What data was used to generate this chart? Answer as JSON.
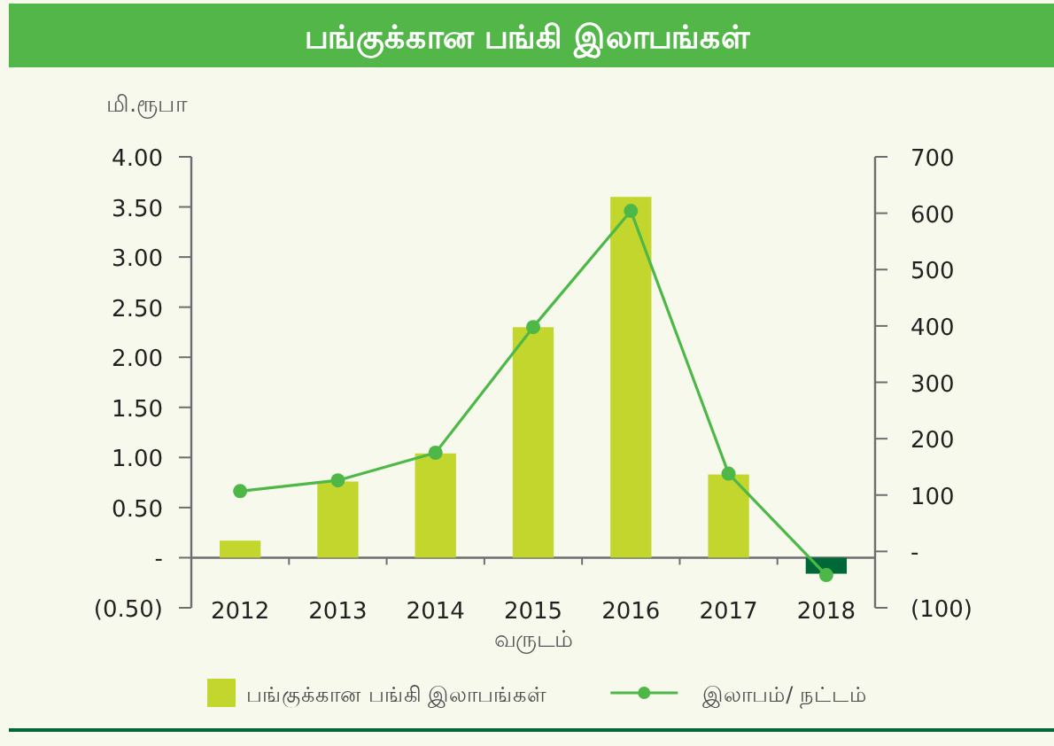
{
  "chart_data": {
    "type": "bar",
    "title": "பங்குக்கான பங்கி இலாபங்கள்",
    "ylabel": "மி.ரூபா",
    "xlabel": "வருடம்",
    "categories": [
      "2012",
      "2013",
      "2014",
      "2015",
      "2016",
      "2017",
      "2018"
    ],
    "series": [
      {
        "name": "பங்குக்கான பங்கி இலாபங்கள்",
        "color": "#c2d62e",
        "colors": [
          "#c2d62e",
          "#c2d62e",
          "#c2d62e",
          "#c2d62e",
          "#c2d62e",
          "#c2d62e",
          "#006838"
        ],
        "values": [
          0.17,
          0.76,
          1.04,
          2.3,
          3.6,
          0.83,
          -0.16
        ]
      },
      {
        "name": "இலாபம்/ நட்டம்",
        "type": "line",
        "axis": "y2",
        "color": "#4db848",
        "marker": "circle",
        "values": [
          107,
          126,
          175,
          398,
          604,
          138,
          -42
        ]
      }
    ],
    "ylim": [
      -0.5,
      4.0
    ],
    "yticks": [
      {
        "value": -0.5,
        "label": "(0.50)"
      },
      {
        "value": 0,
        "label": "-"
      },
      {
        "value": 0.5,
        "label": "0.50"
      },
      {
        "value": 1,
        "label": "1.00"
      },
      {
        "value": 1.5,
        "label": "1.50"
      },
      {
        "value": 2,
        "label": "2.00"
      },
      {
        "value": 2.5,
        "label": "2.50"
      },
      {
        "value": 3,
        "label": "3.00"
      },
      {
        "value": 3.5,
        "label": "3.50"
      },
      {
        "value": 4,
        "label": "4.00"
      }
    ],
    "y2lim": [
      -100,
      700
    ],
    "y2ticks": [
      {
        "value": -100,
        "label": "(100)"
      },
      {
        "value": 0,
        "label": "-"
      },
      100,
      200,
      300,
      400,
      500,
      600,
      700
    ],
    "legend": "bottom"
  }
}
